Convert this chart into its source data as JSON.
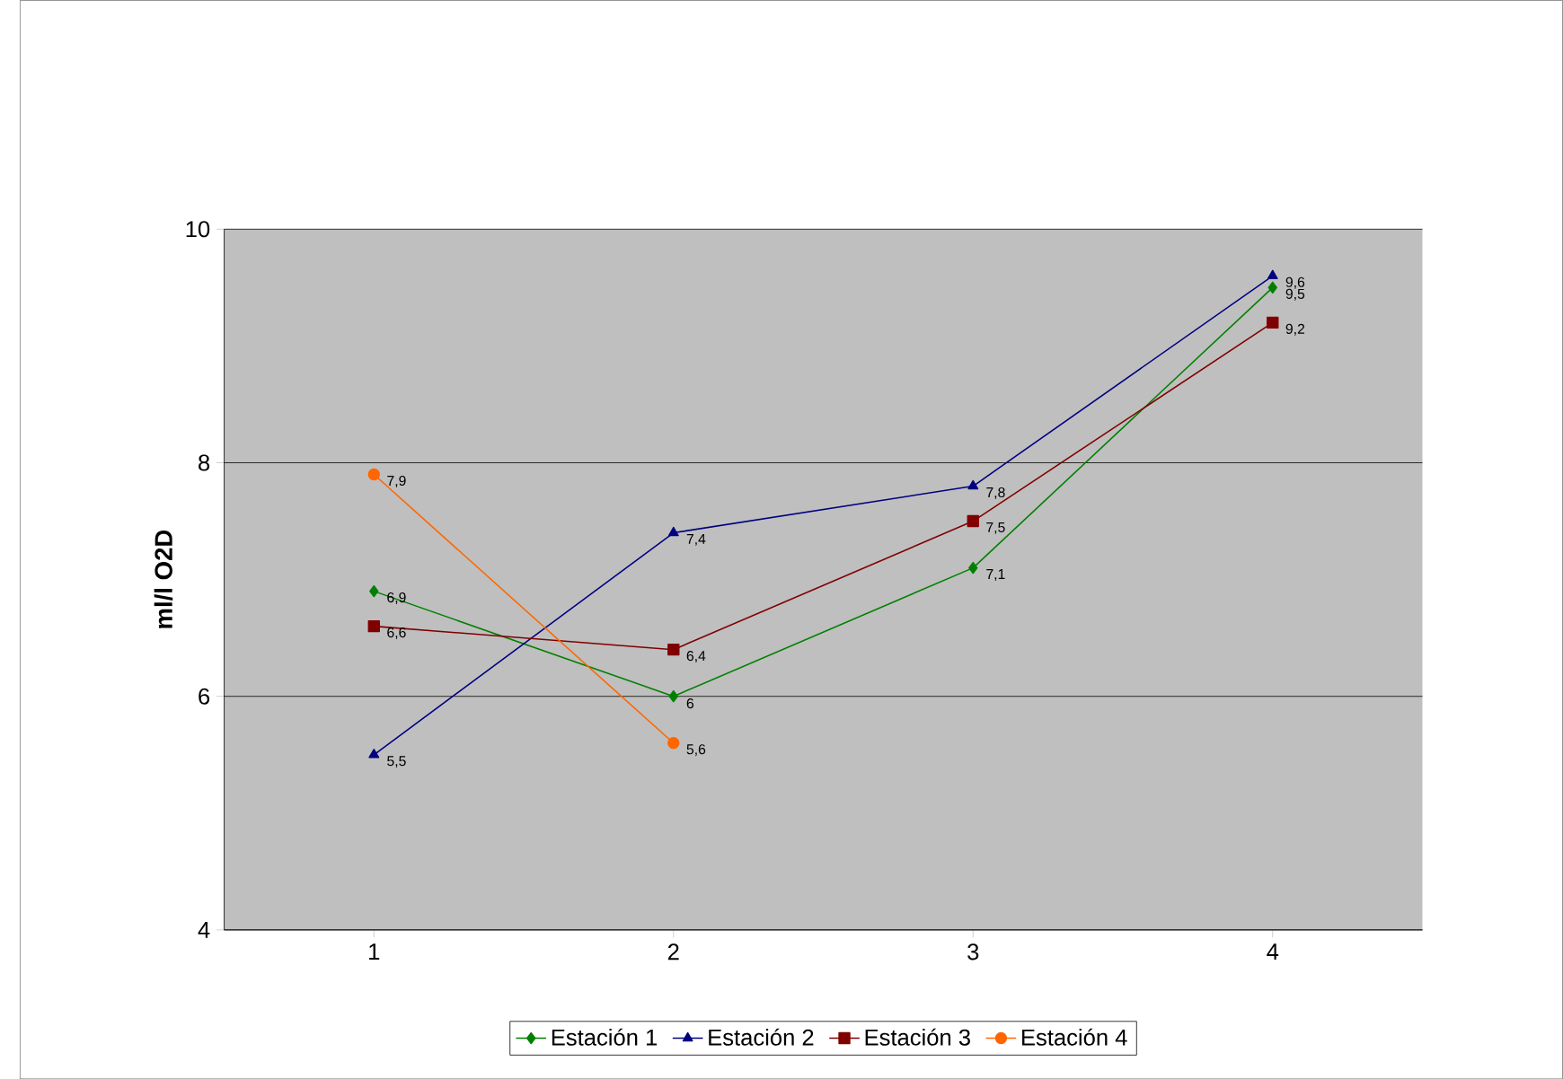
{
  "chart_data": {
    "type": "line",
    "ylabel": "ml/l O2D",
    "categories": [
      "1",
      "2",
      "3",
      "4"
    ],
    "series": [
      {
        "name": "Estación 1",
        "color": "#008000",
        "marker": "diamond",
        "values": [
          6.9,
          6,
          7.1,
          9.5
        ],
        "value_labels": [
          "6,9",
          "6",
          "7,1",
          "9,5"
        ]
      },
      {
        "name": "Estación 2",
        "color": "#000080",
        "marker": "triangle",
        "values": [
          5.5,
          7.4,
          7.8,
          9.6
        ],
        "value_labels": [
          "5,5",
          "7,4",
          "7,8",
          "9,6"
        ]
      },
      {
        "name": "Estación 3",
        "color": "#800000",
        "marker": "square",
        "values": [
          6.6,
          6.4,
          7.5,
          9.2
        ],
        "value_labels": [
          "6,6",
          "6,4",
          "7,5",
          "9,2"
        ]
      },
      {
        "name": "Estación 4",
        "color": "#ff6600",
        "marker": "circle",
        "values": [
          7.9,
          5.6,
          null,
          null
        ],
        "value_labels": [
          "7,9",
          "5,6",
          null,
          null
        ]
      }
    ],
    "ylim": [
      4,
      10
    ],
    "yticks": [
      4,
      6,
      8,
      10
    ],
    "grid": "y",
    "legend": "bottom"
  }
}
